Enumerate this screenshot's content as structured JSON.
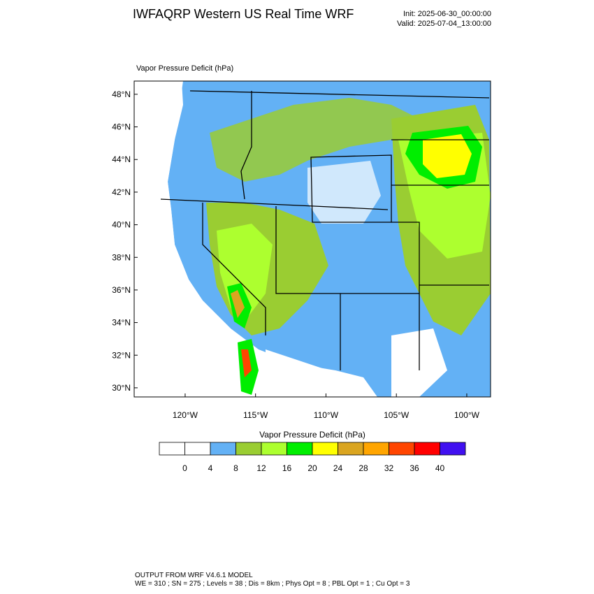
{
  "header": {
    "title": "IWFAQRP Western US Real Time WRF",
    "init": "Init: 2025-06-30_00:00:00",
    "valid": "Valid: 2025-07-04_13:00:00"
  },
  "map": {
    "field_label": "Vapor Pressure Deficit   (hPa)",
    "xlim": [
      -123.62,
      -98.31
    ],
    "ylim": [
      29.44,
      48.81
    ],
    "yticks": [
      {
        "value": 30,
        "label": "30°N"
      },
      {
        "value": 32,
        "label": "32°N"
      },
      {
        "value": 34,
        "label": "34°N"
      },
      {
        "value": 36,
        "label": "36°N"
      },
      {
        "value": 38,
        "label": "38°N"
      },
      {
        "value": 40,
        "label": "40°N"
      },
      {
        "value": 42,
        "label": "42°N"
      },
      {
        "value": 44,
        "label": "44°N"
      },
      {
        "value": 46,
        "label": "46°N"
      },
      {
        "value": 48,
        "label": "48°N"
      }
    ],
    "xticks": [
      {
        "value": -120,
        "label": "120°W"
      },
      {
        "value": -115,
        "label": "115°W"
      },
      {
        "value": -110,
        "label": "110°W"
      },
      {
        "value": -105,
        "label": "105°W"
      },
      {
        "value": -100,
        "label": "100°W"
      }
    ]
  },
  "colorbar": {
    "title": "Vapor Pressure Deficit  (hPa)",
    "levels": [
      0,
      4,
      8,
      12,
      16,
      20,
      24,
      28,
      32,
      36,
      40
    ],
    "colors": [
      "#ffffff",
      "#ffffff",
      "#63b1f5",
      "#9acd32",
      "#adff2f",
      "#00ee00",
      "#ffff00",
      "#daa520",
      "#ffa500",
      "#ff4500",
      "#ff0000",
      "#4010f0"
    ]
  },
  "footer": {
    "line1": "OUTPUT FROM WRF V4.6.1 MODEL",
    "line2": "WE = 310 ; SN = 275 ; Levels = 38 ; Dis = 8km ; Phys Opt = 8 ; PBL Opt = 1 ; Cu Opt = 3"
  }
}
